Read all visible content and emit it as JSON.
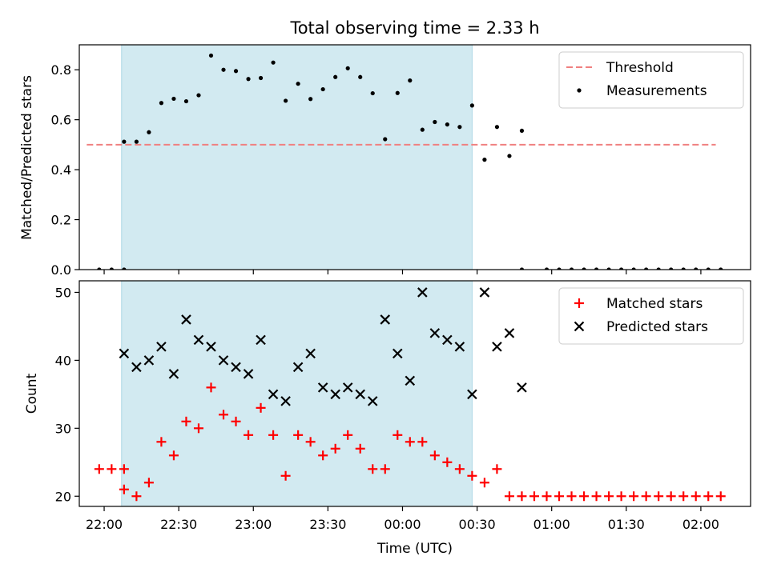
{
  "chart_data": [
    {
      "type": "scatter",
      "title": "Total observing time = 2.33 h",
      "xlabel": "",
      "ylabel": "Matched/Predicted stars",
      "ylim": [
        0.0,
        0.9
      ],
      "yticks": [
        "0.0",
        "0.2",
        "0.4",
        "0.6",
        "0.8"
      ],
      "xlim": [
        "21:50",
        "02:20"
      ],
      "grid": false,
      "legend": "top-right",
      "shaded_interval": [
        "22:07",
        "00:28"
      ],
      "shade_color": "#add8e6",
      "threshold": {
        "name": "Threshold",
        "value": 0.5,
        "x_range": [
          "21:53",
          "02:06"
        ],
        "color": "#f08080"
      },
      "series": [
        {
          "name": "Measurements",
          "color": "#000000",
          "points": [
            [
              "21:58",
              0.0
            ],
            [
              "22:03",
              0.0
            ],
            [
              "22:08",
              0.0
            ],
            [
              "22:08",
              0.512
            ],
            [
              "22:13",
              0.512
            ],
            [
              "22:18",
              0.55
            ],
            [
              "22:23",
              0.667
            ],
            [
              "22:28",
              0.684
            ],
            [
              "22:33",
              0.674
            ],
            [
              "22:38",
              0.698
            ],
            [
              "22:43",
              0.857
            ],
            [
              "22:48",
              0.8
            ],
            [
              "22:53",
              0.795
            ],
            [
              "22:58",
              0.763
            ],
            [
              "23:03",
              0.767
            ],
            [
              "23:08",
              0.829
            ],
            [
              "23:13",
              0.676
            ],
            [
              "23:18",
              0.744
            ],
            [
              "23:23",
              0.683
            ],
            [
              "23:28",
              0.722
            ],
            [
              "23:33",
              0.771
            ],
            [
              "23:38",
              0.806
            ],
            [
              "23:43",
              0.771
            ],
            [
              "23:48",
              0.706
            ],
            [
              "23:53",
              0.522
            ],
            [
              "23:58",
              0.707
            ],
            [
              "00:03",
              0.757
            ],
            [
              "00:08",
              0.56
            ],
            [
              "00:13",
              0.591
            ],
            [
              "00:18",
              0.581
            ],
            [
              "00:23",
              0.571
            ],
            [
              "00:28",
              0.657
            ],
            [
              "00:33",
              0.44
            ],
            [
              "00:38",
              0.571
            ],
            [
              "00:43",
              0.455
            ],
            [
              "00:48",
              0.556
            ],
            [
              "00:48",
              0.0
            ],
            [
              "00:58",
              0.0
            ],
            [
              "01:03",
              0.0
            ],
            [
              "01:08",
              0.0
            ],
            [
              "01:13",
              0.0
            ],
            [
              "01:18",
              0.0
            ],
            [
              "01:23",
              0.0
            ],
            [
              "01:28",
              0.0
            ],
            [
              "01:33",
              0.0
            ],
            [
              "01:38",
              0.0
            ],
            [
              "01:43",
              0.0
            ],
            [
              "01:48",
              0.0
            ],
            [
              "01:53",
              0.0
            ],
            [
              "01:58",
              0.0
            ],
            [
              "02:03",
              0.0
            ],
            [
              "02:08",
              0.0
            ]
          ]
        }
      ]
    },
    {
      "type": "scatter",
      "title": "",
      "xlabel": "Time (UTC)",
      "ylabel": "Count",
      "ylim": [
        18.5,
        51.7
      ],
      "yticks": [
        "20",
        "30",
        "40",
        "50"
      ],
      "xlim": [
        "21:50",
        "02:20"
      ],
      "xticks": [
        "22:00",
        "22:30",
        "23:00",
        "23:30",
        "00:00",
        "00:30",
        "01:00",
        "01:30",
        "02:00"
      ],
      "grid": false,
      "legend": "top-right",
      "shaded_interval": [
        "22:07",
        "00:28"
      ],
      "shade_color": "#add8e6",
      "series": [
        {
          "name": "Matched stars",
          "marker": "plus",
          "color": "#ff0000",
          "points": [
            [
              "21:58",
              24
            ],
            [
              "22:03",
              24
            ],
            [
              "22:08",
              24
            ],
            [
              "22:08",
              21
            ],
            [
              "22:13",
              20
            ],
            [
              "22:18",
              22
            ],
            [
              "22:23",
              28
            ],
            [
              "22:28",
              26
            ],
            [
              "22:33",
              31
            ],
            [
              "22:38",
              30
            ],
            [
              "22:43",
              36
            ],
            [
              "22:48",
              32
            ],
            [
              "22:53",
              31
            ],
            [
              "22:58",
              29
            ],
            [
              "23:03",
              33
            ],
            [
              "23:08",
              29
            ],
            [
              "23:13",
              23
            ],
            [
              "23:18",
              29
            ],
            [
              "23:23",
              28
            ],
            [
              "23:28",
              26
            ],
            [
              "23:33",
              27
            ],
            [
              "23:38",
              29
            ],
            [
              "23:43",
              27
            ],
            [
              "23:48",
              24
            ],
            [
              "23:53",
              24
            ],
            [
              "23:58",
              29
            ],
            [
              "00:03",
              28
            ],
            [
              "00:08",
              28
            ],
            [
              "00:13",
              26
            ],
            [
              "00:18",
              25
            ],
            [
              "00:23",
              24
            ],
            [
              "00:28",
              23
            ],
            [
              "00:33",
              22
            ],
            [
              "00:38",
              24
            ],
            [
              "00:43",
              20
            ],
            [
              "00:48",
              20
            ],
            [
              "00:53",
              20
            ],
            [
              "00:58",
              20
            ],
            [
              "01:03",
              20
            ],
            [
              "01:08",
              20
            ],
            [
              "01:13",
              20
            ],
            [
              "01:18",
              20
            ],
            [
              "01:23",
              20
            ],
            [
              "01:28",
              20
            ],
            [
              "01:33",
              20
            ],
            [
              "01:38",
              20
            ],
            [
              "01:43",
              20
            ],
            [
              "01:48",
              20
            ],
            [
              "01:53",
              20
            ],
            [
              "01:58",
              20
            ],
            [
              "02:03",
              20
            ],
            [
              "02:08",
              20
            ]
          ]
        },
        {
          "name": "Predicted stars",
          "marker": "x",
          "color": "#000000",
          "points": [
            [
              "22:08",
              41
            ],
            [
              "22:13",
              39
            ],
            [
              "22:18",
              40
            ],
            [
              "22:23",
              42
            ],
            [
              "22:28",
              38
            ],
            [
              "22:33",
              46
            ],
            [
              "22:38",
              43
            ],
            [
              "22:43",
              42
            ],
            [
              "22:48",
              40
            ],
            [
              "22:53",
              39
            ],
            [
              "22:58",
              38
            ],
            [
              "23:03",
              43
            ],
            [
              "23:08",
              35
            ],
            [
              "23:13",
              34
            ],
            [
              "23:18",
              39
            ],
            [
              "23:23",
              41
            ],
            [
              "23:28",
              36
            ],
            [
              "23:33",
              35
            ],
            [
              "23:38",
              36
            ],
            [
              "23:43",
              35
            ],
            [
              "23:48",
              34
            ],
            [
              "23:53",
              46
            ],
            [
              "23:58",
              41
            ],
            [
              "00:03",
              37
            ],
            [
              "00:08",
              50
            ],
            [
              "00:13",
              44
            ],
            [
              "00:18",
              43
            ],
            [
              "00:23",
              42
            ],
            [
              "00:28",
              35
            ],
            [
              "00:33",
              50
            ],
            [
              "00:38",
              42
            ],
            [
              "00:43",
              44
            ],
            [
              "00:48",
              36
            ]
          ]
        }
      ]
    }
  ]
}
